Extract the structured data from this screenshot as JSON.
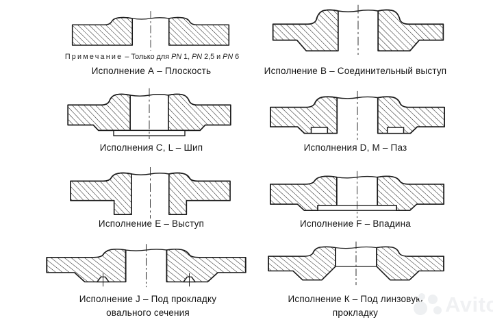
{
  "page": {
    "background": "#ffffff",
    "line_color": "#1b1b1b"
  },
  "note": {
    "segments": [
      {
        "t": "Примечание",
        "cls": "spaced"
      },
      {
        "t": " – Только для ",
        "cls": ""
      },
      {
        "t": "PN",
        "cls": "pn"
      },
      {
        "t": " 1, ",
        "cls": ""
      },
      {
        "t": "PN",
        "cls": "pn"
      },
      {
        "t": " 2,5 и ",
        "cls": ""
      },
      {
        "t": "PN",
        "cls": "pn"
      },
      {
        "t": " 6",
        "cls": ""
      }
    ]
  },
  "figures": [
    {
      "id": "A",
      "caption_lines": [
        "Исполнение А – Плоскость"
      ]
    },
    {
      "id": "B",
      "caption_lines": [
        "Исполнение В – Соединительный выступ"
      ]
    },
    {
      "id": "C_L",
      "caption_lines": [
        "Исполнения C, L – Шип"
      ]
    },
    {
      "id": "D_M",
      "caption_lines": [
        "Исполнения D, М – Паз"
      ]
    },
    {
      "id": "E",
      "caption_lines": [
        "Исполнение Е – Выступ"
      ]
    },
    {
      "id": "F",
      "caption_lines": [
        "Исполнение F – Впадина"
      ]
    },
    {
      "id": "J",
      "caption_lines": [
        "Исполнение J – Под прокладку",
        "овального сечения"
      ]
    },
    {
      "id": "K",
      "caption_lines": [
        "Исполнение К – Под линзовую",
        "прокладку"
      ]
    }
  ],
  "watermark": {
    "text": "Avito"
  }
}
